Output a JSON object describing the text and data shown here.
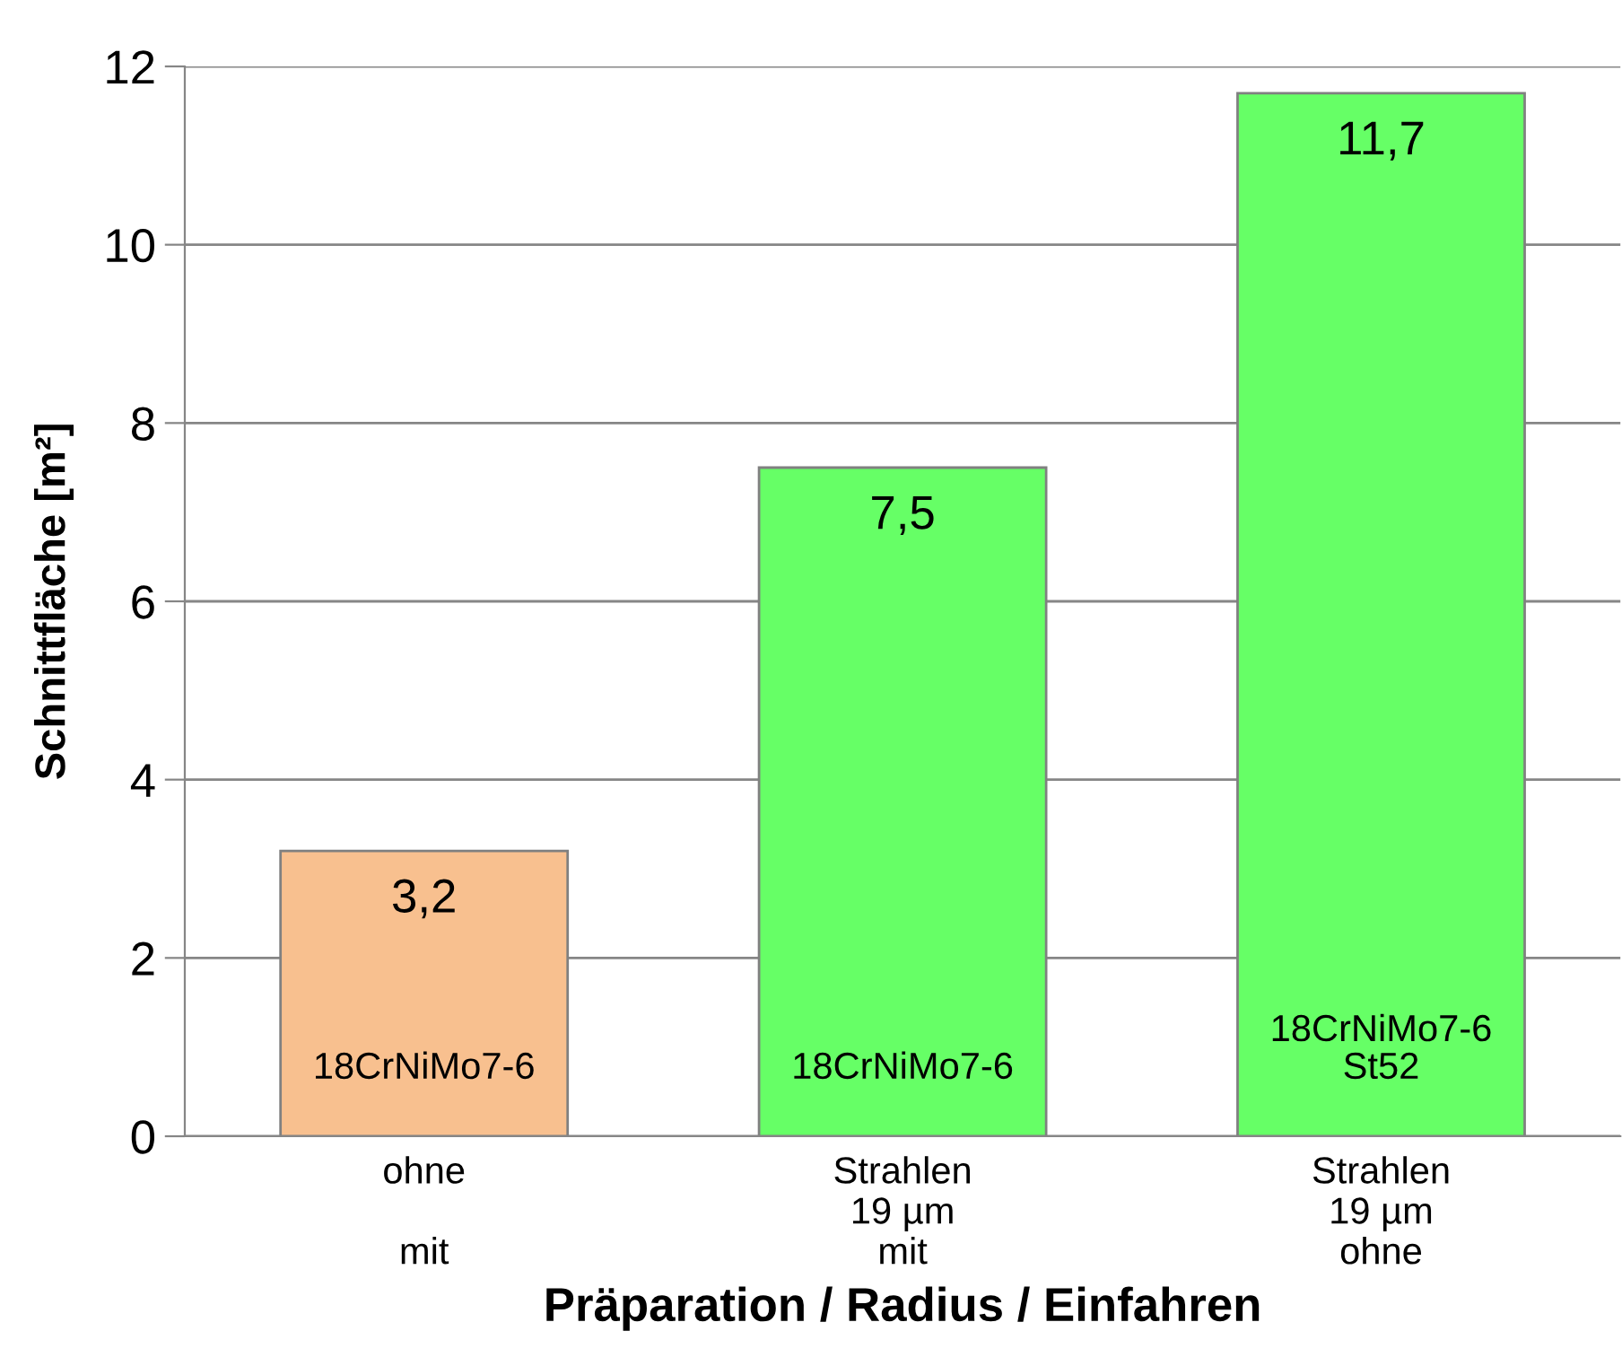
{
  "chart_data": {
    "type": "bar",
    "xlabel": "Präparation / Radius / Einfahren",
    "ylabel": "Schnittfläche [m²]",
    "categories": [
      "ohne\n\nmit",
      "Strahlen\n19 µm\nmit",
      "Strahlen\n19 µm\nohne"
    ],
    "values": [
      3.2,
      7.5,
      11.7
    ],
    "colors": [
      "#f8c08f",
      "#66ff66",
      "#66ff66"
    ],
    "value_labels": [
      "3,2",
      "7,5",
      "11,7"
    ],
    "annotations": [
      "18CrNiMo7-6",
      "18CrNiMo7-6",
      "18CrNiMo7-6\nSt52"
    ],
    "ylim": [
      0,
      12
    ],
    "yticks": [
      0,
      2,
      4,
      6,
      8,
      10,
      12
    ],
    "grid": "y",
    "legend": false
  }
}
